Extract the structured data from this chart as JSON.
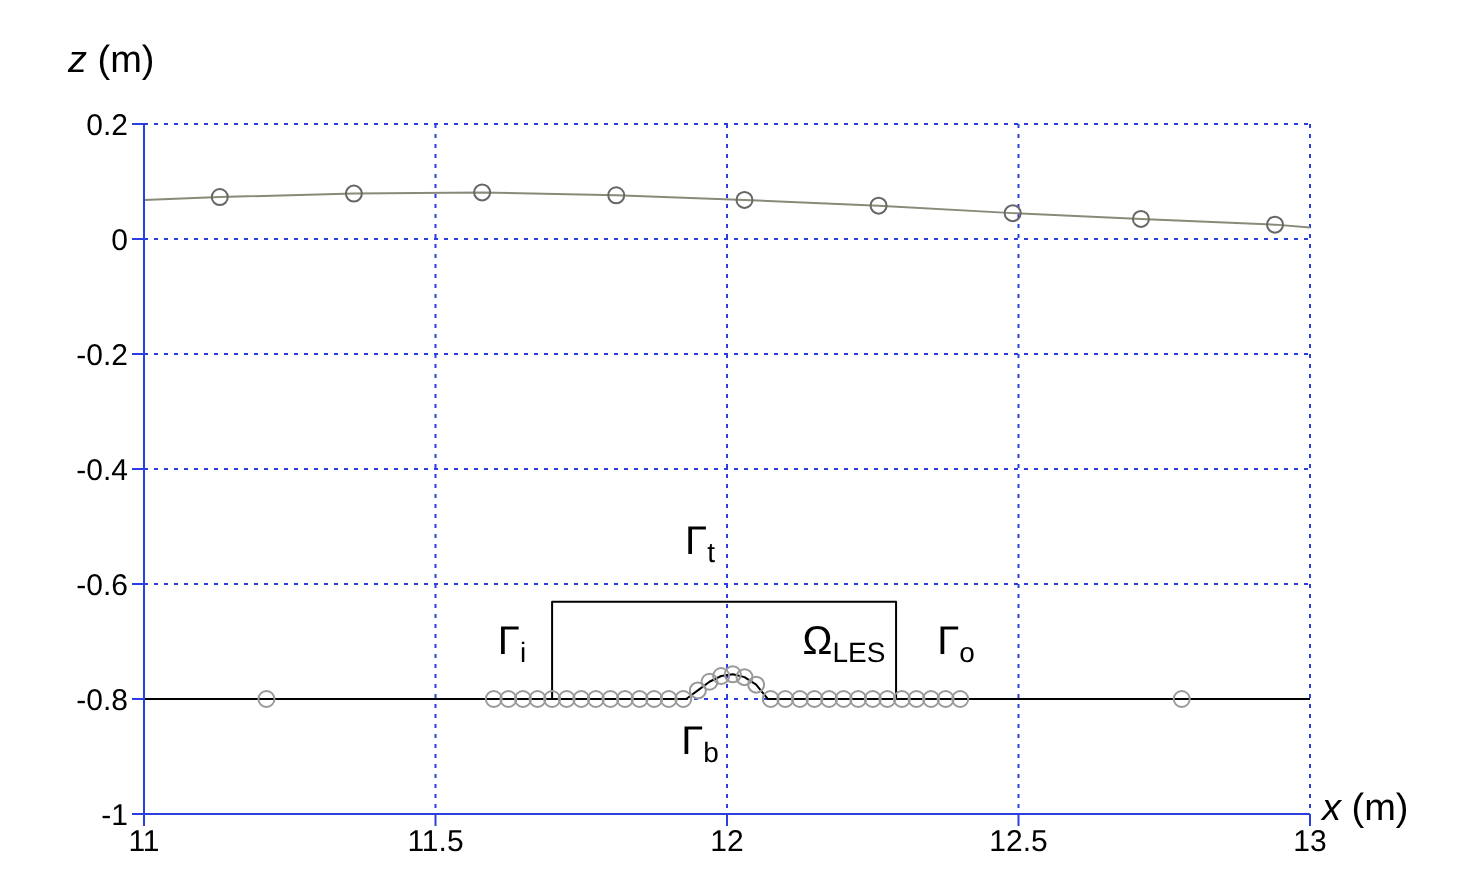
{
  "chart_data": {
    "type": "line",
    "xlabel": "x (m)",
    "ylabel": "z (m)",
    "xlim": [
      11,
      13
    ],
    "ylim": [
      -1,
      0.2
    ],
    "xticks": [
      11,
      11.5,
      12,
      12.5,
      13
    ],
    "yticks": [
      -1,
      -0.8,
      -0.6,
      -0.4,
      -0.2,
      0,
      0.2
    ],
    "grid": true,
    "series": [
      {
        "color": "#8a8a78",
        "marker": "none",
        "x": [
          11,
          11.13,
          11.36,
          11.58,
          11.81,
          12.03,
          12.26,
          12.49,
          12.71,
          12.94,
          13
        ],
        "values": [
          0.068,
          0.073,
          0.079,
          0.081,
          0.076,
          0.068,
          0.058,
          0.045,
          0.035,
          0.025,
          0.02
        ]
      },
      {
        "type": "scatter",
        "color": "#666666",
        "marker": "circle",
        "x": [
          11.13,
          11.36,
          11.58,
          11.81,
          12.03,
          12.26,
          12.49,
          12.71,
          12.94
        ],
        "values": [
          0.073,
          0.079,
          0.081,
          0.076,
          0.068,
          0.058,
          0.045,
          0.035,
          0.025
        ]
      },
      {
        "color": "#000000",
        "marker": "none",
        "x": [
          11,
          11.93,
          11.95,
          11.97,
          11.99,
          12.01,
          12.03,
          12.05,
          12.07,
          13
        ],
        "values": [
          -0.8,
          -0.8,
          -0.785,
          -0.77,
          -0.76,
          -0.757,
          -0.762,
          -0.775,
          -0.8,
          -0.8
        ]
      },
      {
        "type": "scatter",
        "color": "#999999",
        "marker": "circle",
        "x": [
          11.21,
          11.6,
          11.625,
          11.65,
          11.675,
          11.7,
          11.725,
          11.75,
          11.775,
          11.8,
          11.825,
          11.85,
          11.875,
          11.9,
          11.925,
          11.95,
          11.97,
          11.99,
          12.01,
          12.03,
          12.05,
          12.075,
          12.1,
          12.125,
          12.15,
          12.175,
          12.2,
          12.225,
          12.25,
          12.275,
          12.3,
          12.325,
          12.35,
          12.375,
          12.4,
          12.78
        ],
        "values": [
          -0.8,
          -0.8,
          -0.8,
          -0.8,
          -0.8,
          -0.8,
          -0.8,
          -0.8,
          -0.8,
          -0.8,
          -0.8,
          -0.8,
          -0.8,
          -0.8,
          -0.8,
          -0.785,
          -0.77,
          -0.76,
          -0.757,
          -0.762,
          -0.775,
          -0.8,
          -0.8,
          -0.8,
          -0.8,
          -0.8,
          -0.8,
          -0.8,
          -0.8,
          -0.8,
          -0.8,
          -0.8,
          -0.8,
          -0.8,
          -0.8,
          -0.8
        ]
      },
      {
        "color": "#000000",
        "marker": "none",
        "x": [
          11.7,
          11.7,
          12.29,
          12.29
        ],
        "values": [
          -0.8,
          -0.631,
          -0.631,
          -0.8
        ]
      }
    ],
    "annotations": [
      "Γ$_{i}$",
      "Γ$_{t}$",
      "Ω$_{LES}$",
      "Γ$_{o}$",
      "Γ$_{b}$"
    ]
  }
}
